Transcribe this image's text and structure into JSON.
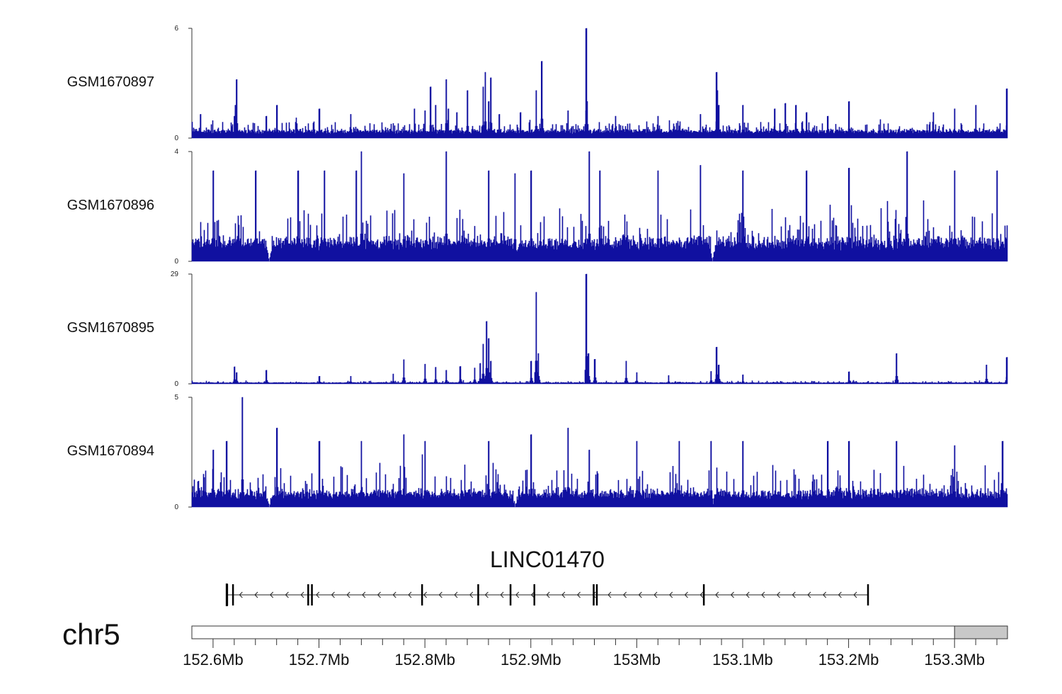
{
  "chart_data": {
    "type": "area",
    "title": "",
    "xlabel": "",
    "x_range": [
      152.58,
      153.35
    ],
    "x_unit": "Mb",
    "chromosome": "chr5",
    "x_tick_labels": [
      {
        "value": 152.6,
        "label": "152.6Mb"
      },
      {
        "value": 152.7,
        "label": "152.7Mb"
      },
      {
        "value": 152.8,
        "label": "152.8Mb"
      },
      {
        "value": 152.9,
        "label": "152.9Mb"
      },
      {
        "value": 153.0,
        "label": "153Mb"
      },
      {
        "value": 153.1,
        "label": "153.1Mb"
      },
      {
        "value": 153.2,
        "label": "153.2Mb"
      },
      {
        "value": 153.3,
        "label": "153.3Mb"
      }
    ],
    "x_minor_ticks": [
      152.62,
      152.64,
      152.66,
      152.68,
      152.72,
      152.74,
      152.76,
      152.78,
      152.82,
      152.84,
      152.86,
      152.88,
      152.92,
      152.94,
      152.96,
      152.98,
      153.02,
      153.04,
      153.06,
      153.08,
      153.12,
      153.14,
      153.16,
      153.18,
      153.22,
      153.24,
      153.26,
      153.28,
      153.32,
      153.34
    ],
    "highlight_region": [
      153.3,
      153.35
    ],
    "series_color": "#1010a0",
    "tracks": [
      {
        "name": "GSM1670897",
        "ylim": [
          0,
          6
        ],
        "y_tick_labels": [
          "0",
          "6"
        ],
        "baseline": 0.4,
        "noise": 0.35,
        "peaks": [
          [
            152.588,
            1.3
          ],
          [
            152.62,
            1.2
          ],
          [
            152.621,
            1.8
          ],
          [
            152.621,
            1.5
          ],
          [
            152.622,
            3.2
          ],
          [
            152.65,
            1.2
          ],
          [
            152.66,
            1.8
          ],
          [
            152.7,
            1.6
          ],
          [
            152.73,
            1.3
          ],
          [
            152.79,
            1.6
          ],
          [
            152.8,
            1.5
          ],
          [
            152.805,
            2.8
          ],
          [
            152.81,
            1.8
          ],
          [
            152.82,
            3.2
          ],
          [
            152.822,
            1.6
          ],
          [
            152.83,
            1.4
          ],
          [
            152.84,
            2.6
          ],
          [
            152.855,
            2.8
          ],
          [
            152.857,
            3.6
          ],
          [
            152.86,
            2.0
          ],
          [
            152.862,
            3.3
          ],
          [
            152.87,
            1.3
          ],
          [
            152.89,
            1.4
          ],
          [
            152.905,
            2.6
          ],
          [
            152.91,
            4.2
          ],
          [
            152.935,
            1.5
          ],
          [
            152.952,
            6.0
          ],
          [
            152.953,
            2.0
          ],
          [
            152.98,
            1.2
          ],
          [
            153.02,
            1.2
          ],
          [
            153.06,
            1.3
          ],
          [
            153.075,
            3.6
          ],
          [
            153.076,
            2.6
          ],
          [
            153.077,
            1.8
          ],
          [
            153.1,
            1.8
          ],
          [
            153.13,
            1.6
          ],
          [
            153.14,
            1.9
          ],
          [
            153.15,
            1.8
          ],
          [
            153.16,
            1.4
          ],
          [
            153.18,
            1.2
          ],
          [
            153.2,
            2.0
          ],
          [
            153.28,
            1.4
          ],
          [
            153.3,
            1.6
          ],
          [
            153.32,
            1.8
          ],
          [
            153.349,
            2.7
          ]
        ]
      },
      {
        "name": "GSM1670896",
        "ylim": [
          0,
          4
        ],
        "y_tick_labels": [
          "0",
          "4"
        ],
        "baseline": 0.7,
        "noise": 0.75,
        "peaks": [
          [
            152.6,
            3.3
          ],
          [
            152.64,
            3.3
          ],
          [
            152.68,
            3.3
          ],
          [
            152.705,
            3.3
          ],
          [
            152.735,
            3.3
          ],
          [
            152.74,
            4.0
          ],
          [
            152.78,
            3.2
          ],
          [
            152.82,
            4.0
          ],
          [
            152.86,
            3.3
          ],
          [
            152.885,
            3.2
          ],
          [
            152.9,
            3.3
          ],
          [
            152.955,
            4.0
          ],
          [
            152.965,
            3.3
          ],
          [
            153.02,
            3.3
          ],
          [
            153.06,
            3.5
          ],
          [
            153.1,
            3.3
          ],
          [
            153.16,
            3.3
          ],
          [
            153.2,
            3.4
          ],
          [
            153.255,
            4.0
          ],
          [
            153.3,
            3.3
          ],
          [
            153.34,
            3.3
          ]
        ],
        "dips": [
          152.653,
          152.885,
          153.071
        ]
      },
      {
        "name": "GSM1670895",
        "ylim": [
          0,
          29
        ],
        "y_tick_labels": [
          "0",
          "29"
        ],
        "baseline": 0.3,
        "noise": 0.3,
        "peaks": [
          [
            152.62,
            4.5
          ],
          [
            152.622,
            3.0
          ],
          [
            152.65,
            3.6
          ],
          [
            152.7,
            2.0
          ],
          [
            152.73,
            2.0
          ],
          [
            152.77,
            2.6
          ],
          [
            152.78,
            6.4
          ],
          [
            152.8,
            5.2
          ],
          [
            152.81,
            4.4
          ],
          [
            152.82,
            3.6
          ],
          [
            152.833,
            4.6
          ],
          [
            152.847,
            4.2
          ],
          [
            152.852,
            5.4
          ],
          [
            152.855,
            10.5
          ],
          [
            152.858,
            16.5
          ],
          [
            152.86,
            12.0
          ],
          [
            152.862,
            6.0
          ],
          [
            152.9,
            6.0
          ],
          [
            152.905,
            24.2
          ],
          [
            152.907,
            8.0
          ],
          [
            152.952,
            29.0
          ],
          [
            152.954,
            8.0
          ],
          [
            152.96,
            6.5
          ],
          [
            152.99,
            6.0
          ],
          [
            153.0,
            3.0
          ],
          [
            153.03,
            2.2
          ],
          [
            153.07,
            3.3
          ],
          [
            153.075,
            9.7
          ],
          [
            153.077,
            5.0
          ],
          [
            153.1,
            2.4
          ],
          [
            153.2,
            3.2
          ],
          [
            153.245,
            8.0
          ],
          [
            153.33,
            5.0
          ],
          [
            153.349,
            7.0
          ]
        ]
      },
      {
        "name": "GSM1670894",
        "ylim": [
          0,
          5
        ],
        "y_tick_labels": [
          "0",
          "5"
        ],
        "baseline": 0.6,
        "noise": 0.8,
        "peaks": [
          [
            152.6,
            2.6
          ],
          [
            152.6125,
            3.0
          ],
          [
            152.6275,
            5.0
          ],
          [
            152.66,
            3.6
          ],
          [
            152.7,
            3.0
          ],
          [
            152.74,
            3.0
          ],
          [
            152.78,
            3.3
          ],
          [
            152.8,
            3.0
          ],
          [
            152.86,
            3.0
          ],
          [
            152.9,
            3.3
          ],
          [
            152.935,
            3.6
          ],
          [
            152.955,
            2.6
          ],
          [
            153.0,
            3.0
          ],
          [
            153.04,
            3.0
          ],
          [
            153.07,
            3.0
          ],
          [
            153.1,
            3.0
          ],
          [
            153.18,
            3.0
          ],
          [
            153.2,
            3.0
          ],
          [
            153.245,
            3.0
          ],
          [
            153.3,
            2.8
          ],
          [
            153.345,
            3.0
          ]
        ],
        "dips": [
          152.653,
          152.885,
          153.071
        ]
      }
    ],
    "gene": {
      "name": "LINC01470",
      "strand": "-",
      "start": 152.613,
      "end": 153.218,
      "exons": [
        [
          152.6125,
          152.6135
        ],
        [
          152.618,
          152.619
        ],
        [
          152.689,
          152.69
        ],
        [
          152.6925,
          152.6935
        ],
        [
          152.88,
          152.881
        ],
        [
          152.7965,
          152.7975
        ],
        [
          152.8495,
          152.8505
        ],
        [
          152.9025,
          152.9035
        ],
        [
          152.9585,
          152.9595
        ],
        [
          152.9615,
          152.9625
        ],
        [
          153.0625,
          153.0635
        ],
        [
          153.2175,
          153.2185
        ]
      ]
    }
  }
}
